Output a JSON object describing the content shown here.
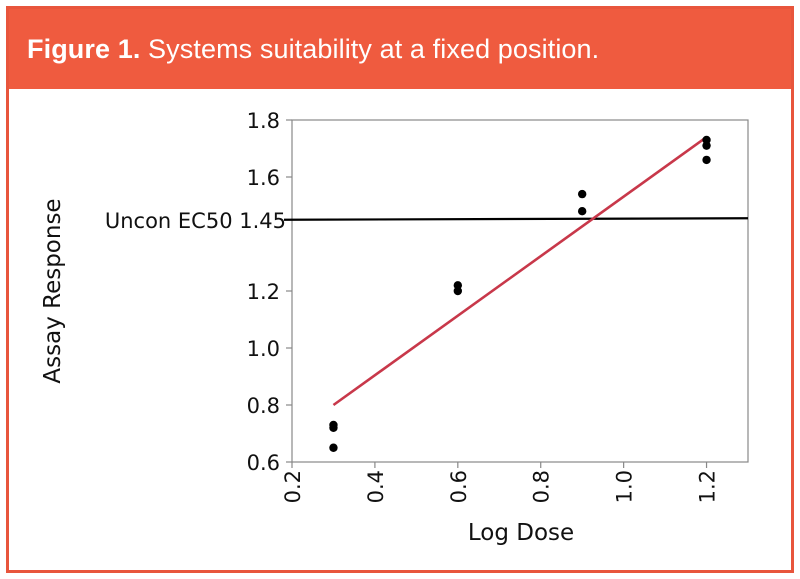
{
  "figure": {
    "label": "Figure 1.",
    "caption": "Systems suitability at a fixed position."
  },
  "colors": {
    "header_bg": "#ef5b3f",
    "border": "#e8553c",
    "fit_line": "#c8384a",
    "points": "#000000",
    "reference_line": "#000000"
  },
  "chart_data": {
    "type": "scatter",
    "title": "",
    "xlabel": "Log Dose",
    "ylabel": "Assay Response",
    "xlim": [
      0.2,
      1.3
    ],
    "ylim": [
      0.6,
      1.8
    ],
    "x_ticks": [
      "0.2",
      "0.4",
      "0.6",
      "0.8",
      "1.0",
      "1.2"
    ],
    "x_tick_values": [
      0.2,
      0.4,
      0.6,
      0.8,
      1.0,
      1.2
    ],
    "y_ticks": [
      "0.6",
      "0.8",
      "1.0",
      "1.2",
      "1.6",
      "1.8"
    ],
    "y_tick_values": [
      0.6,
      0.8,
      1.0,
      1.2,
      1.6,
      1.8
    ],
    "grid": false,
    "series": [
      {
        "points": [
          {
            "x": 0.3,
            "y": 0.73
          },
          {
            "x": 0.3,
            "y": 0.72
          },
          {
            "x": 0.3,
            "y": 0.65
          },
          {
            "x": 0.6,
            "y": 1.22
          },
          {
            "x": 0.6,
            "y": 1.2
          },
          {
            "x": 0.9,
            "y": 1.54
          },
          {
            "x": 0.9,
            "y": 1.48
          },
          {
            "x": 1.2,
            "y": 1.73
          },
          {
            "x": 1.2,
            "y": 1.71
          },
          {
            "x": 1.2,
            "y": 1.66
          }
        ]
      }
    ],
    "fit_line": {
      "x": [
        0.3,
        1.2
      ],
      "y": [
        0.8,
        1.74
      ]
    },
    "reference_line": {
      "y": 1.45,
      "label": "Uncon EC50 1.45"
    }
  }
}
